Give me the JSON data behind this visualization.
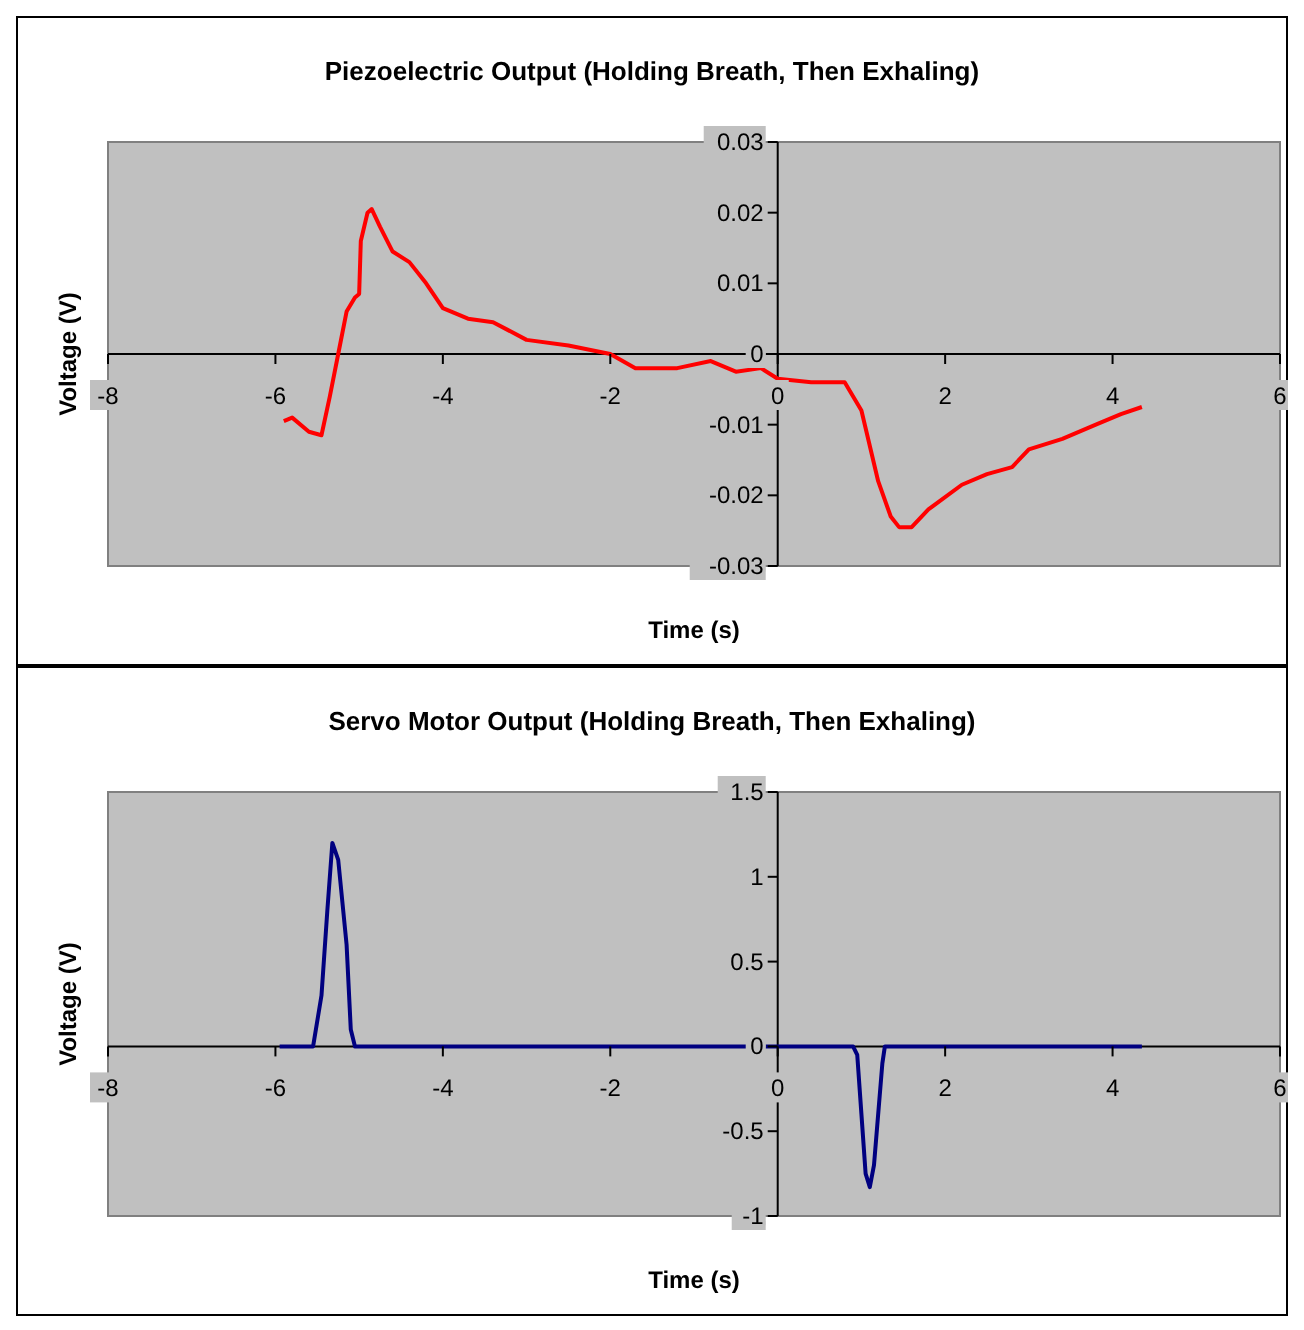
{
  "chart_data": [
    {
      "type": "line",
      "title": "Piezoelectric Output (Holding Breath, Then Exhaling)",
      "xlabel": "Time (s)",
      "ylabel": "Voltage (V)",
      "xlim": [
        -8,
        6
      ],
      "ylim": [
        -0.03,
        0.03
      ],
      "xticks": [
        -8,
        -6,
        -4,
        -2,
        0,
        2,
        4,
        6
      ],
      "yticks": [
        -0.03,
        -0.02,
        -0.01,
        0,
        0.01,
        0.02,
        0.03
      ],
      "grid": false,
      "marker": "none",
      "series": [
        {
          "color": "#ff0000",
          "x": [
            -5.9,
            -5.8,
            -5.6,
            -5.45,
            -5.35,
            -5.25,
            -5.15,
            -5.05,
            -5.0,
            -4.98,
            -4.9,
            -4.85,
            -4.75,
            -4.6,
            -4.4,
            -4.2,
            -4.0,
            -3.7,
            -3.4,
            -3.0,
            -2.5,
            -2.0,
            -1.7,
            -1.2,
            -0.8,
            -0.5,
            -0.2,
            0,
            0.4,
            0.8,
            1.0,
            1.2,
            1.35,
            1.45,
            1.6,
            1.8,
            2.2,
            2.5,
            2.8,
            3.0,
            3.4,
            3.8,
            4.1,
            4.35
          ],
          "values": [
            -0.0095,
            -0.009,
            -0.011,
            -0.0115,
            -0.006,
            0.0,
            0.006,
            0.008,
            0.0085,
            0.016,
            0.02,
            0.0205,
            0.018,
            0.0145,
            0.013,
            0.01,
            0.0065,
            0.005,
            0.0045,
            0.002,
            0.0012,
            0.0,
            -0.002,
            -0.002,
            -0.001,
            -0.0025,
            -0.002,
            -0.0035,
            -0.004,
            -0.004,
            -0.008,
            -0.018,
            -0.023,
            -0.0245,
            -0.0245,
            -0.022,
            -0.0185,
            -0.017,
            -0.016,
            -0.0135,
            -0.012,
            -0.01,
            -0.0085,
            -0.0075
          ]
        }
      ]
    },
    {
      "type": "line",
      "title": "Servo Motor Output (Holding Breath, Then Exhaling)",
      "xlabel": "Time (s)",
      "ylabel": "Voltage (V)",
      "xlim": [
        -8,
        6
      ],
      "ylim": [
        -1,
        1.5
      ],
      "xticks": [
        -8,
        -6,
        -4,
        -2,
        0,
        2,
        4,
        6
      ],
      "yticks": [
        -1,
        -0.5,
        0,
        0.5,
        1,
        1.5
      ],
      "grid": false,
      "marker": "none",
      "series": [
        {
          "color": "#000080",
          "x": [
            -5.95,
            -5.55,
            -5.45,
            -5.38,
            -5.32,
            -5.25,
            -5.15,
            -5.1,
            -5.05,
            0.9,
            0.95,
            1.0,
            1.05,
            1.1,
            1.15,
            1.2,
            1.25,
            1.28,
            4.35
          ],
          "values": [
            0,
            0,
            0.3,
            0.8,
            1.2,
            1.1,
            0.6,
            0.1,
            0,
            0,
            -0.05,
            -0.4,
            -0.75,
            -0.83,
            -0.7,
            -0.4,
            -0.1,
            0,
            0
          ]
        }
      ]
    }
  ]
}
